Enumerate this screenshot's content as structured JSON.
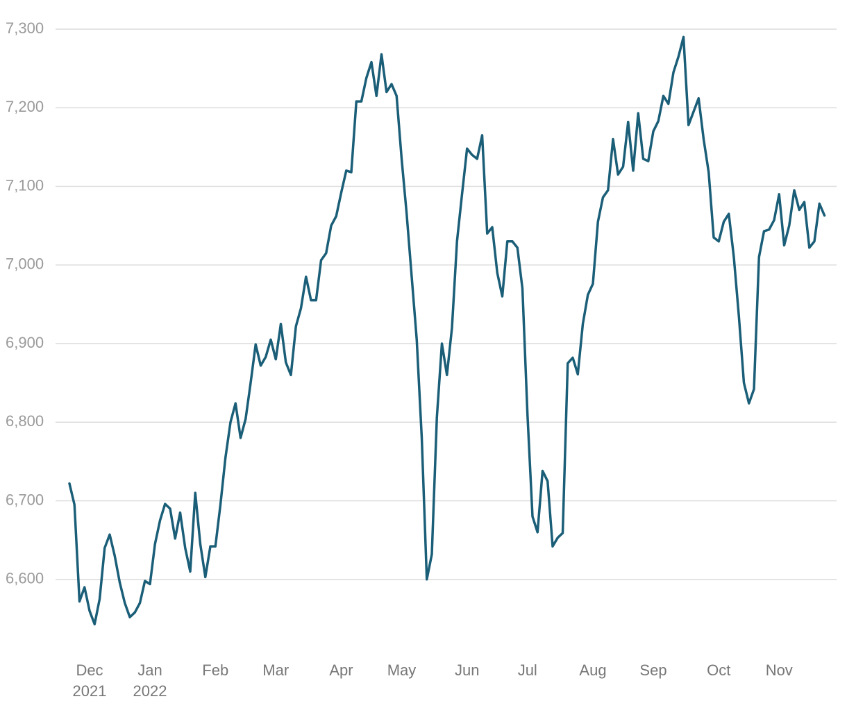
{
  "chart_data": {
    "type": "line",
    "color": "#1b5e78",
    "grid": true,
    "ylim": [
      6500,
      7320
    ],
    "yticks": [
      {
        "value": 6600,
        "label": "6,600"
      },
      {
        "value": 6700,
        "label": "6,700"
      },
      {
        "value": 6800,
        "label": "6,800"
      },
      {
        "value": 6900,
        "label": "6,900"
      },
      {
        "value": 7000,
        "label": "7,000"
      },
      {
        "value": 7100,
        "label": "7,100"
      },
      {
        "value": 7200,
        "label": "7,200"
      },
      {
        "value": 7300,
        "label": "7,300"
      }
    ],
    "categories": [
      null,
      null,
      null,
      null,
      "Dec 2021",
      null,
      null,
      null,
      null,
      null,
      null,
      null,
      null,
      null,
      null,
      null,
      "Jan 2022",
      null,
      null,
      null,
      null,
      null,
      null,
      null,
      null,
      null,
      null,
      null,
      null,
      "Feb",
      null,
      null,
      null,
      null,
      null,
      null,
      null,
      null,
      null,
      null,
      null,
      "Mar",
      null,
      null,
      null,
      null,
      null,
      null,
      null,
      null,
      null,
      null,
      null,
      null,
      "Apr",
      null,
      null,
      null,
      null,
      null,
      null,
      null,
      null,
      null,
      null,
      null,
      "May",
      null,
      null,
      null,
      null,
      null,
      null,
      null,
      null,
      null,
      null,
      null,
      null,
      "Jun",
      null,
      null,
      null,
      null,
      null,
      null,
      null,
      null,
      null,
      null,
      null,
      "Jul",
      null,
      null,
      null,
      null,
      null,
      null,
      null,
      null,
      null,
      null,
      null,
      null,
      "Aug",
      null,
      null,
      null,
      null,
      null,
      null,
      null,
      null,
      null,
      null,
      null,
      "Sep",
      null,
      null,
      null,
      null,
      null,
      null,
      null,
      null,
      null,
      null,
      null,
      null,
      "Oct",
      null,
      null,
      null,
      null,
      null,
      null,
      null,
      null,
      null,
      null,
      null,
      "Nov",
      null,
      null,
      null,
      null,
      null,
      null,
      null,
      null,
      null
    ],
    "values": [
      6722,
      6695,
      6572,
      6590,
      6560,
      6543,
      6575,
      6640,
      6657,
      6630,
      6596,
      6570,
      6552,
      6558,
      6570,
      6598,
      6594,
      6645,
      6675,
      6696,
      6690,
      6652,
      6685,
      6640,
      6610,
      6710,
      6645,
      6603,
      6642,
      6642,
      6695,
      6755,
      6800,
      6824,
      6780,
      6804,
      6850,
      6899,
      6872,
      6883,
      6905,
      6880,
      6925,
      6876,
      6860,
      6922,
      6945,
      6985,
      6955,
      6955,
      7006,
      7015,
      7050,
      7062,
      7092,
      7120,
      7118,
      7208,
      7208,
      7238,
      7258,
      7215,
      7268,
      7220,
      7230,
      7215,
      7135,
      7065,
      6985,
      6905,
      6780,
      6600,
      6632,
      6806,
      6900,
      6860,
      6920,
      7030,
      7090,
      7148,
      7140,
      7135,
      7165,
      7040,
      7048,
      6990,
      6960,
      7030,
      7030,
      7022,
      6970,
      6810,
      6680,
      6660,
      6738,
      6725,
      6642,
      6653,
      6659,
      6875,
      6882,
      6861,
      6925,
      6962,
      6976,
      7055,
      7086,
      7095,
      7160,
      7115,
      7125,
      7182,
      7120,
      7193,
      7135,
      7132,
      7170,
      7183,
      7215,
      7205,
      7245,
      7265,
      7290,
      7178,
      7195,
      7212,
      7160,
      7118,
      7035,
      7030,
      7055,
      7065,
      7010,
      6935,
      6850,
      6824,
      6842,
      7010,
      7043,
      7045,
      7057,
      7090,
      7025,
      7050,
      7095,
      7070,
      7080,
      7022,
      7030,
      7078,
      7063
    ]
  }
}
